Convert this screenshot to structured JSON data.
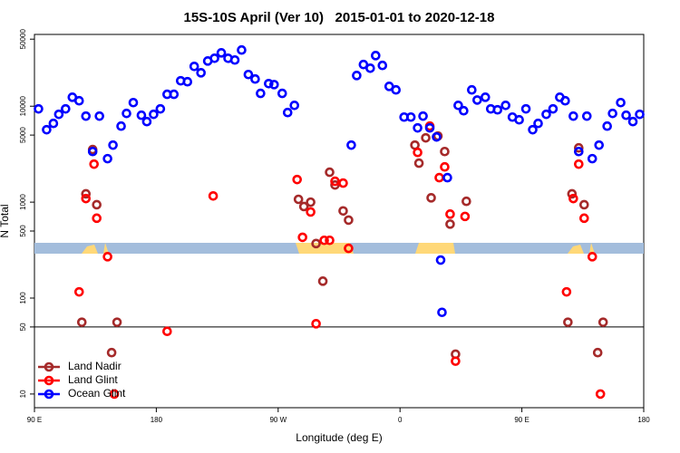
{
  "chart_data": {
    "type": "scatter",
    "title": "15S-10S April (Ver 10)   2015-01-01 to 2020-12-18",
    "x_label": "Longitude (deg E)",
    "y_label": "N Total",
    "log_y": true,
    "legend": "bottom-left",
    "reference_line": 50,
    "xlim": [
      90,
      540
    ],
    "ylim": [
      7.2,
      56000
    ],
    "xticks": [
      {
        "value": 90,
        "label": "90 E"
      },
      {
        "value": 180,
        "label": "180"
      },
      {
        "value": 270,
        "label": "90 W"
      },
      {
        "value": 360,
        "label": "0"
      },
      {
        "value": 450,
        "label": "90 E"
      },
      {
        "value": 540,
        "label": "180"
      }
    ],
    "yticks": [
      10,
      50,
      100,
      500,
      1000,
      5000,
      10000,
      50000
    ],
    "series": [
      {
        "name": "Land Nadir",
        "color": "#a52a2a",
        "x": [
          133,
          128,
          136,
          147,
          151,
          285,
          289,
          294,
          298,
          303,
          308,
          312,
          318,
          322,
          371,
          374,
          379,
          383,
          388,
          393,
          397,
          409,
          401,
          492,
          487,
          496,
          506,
          510,
          125,
          484
        ],
        "values": [
          3530,
          1220,
          940,
          27,
          56,
          1070,
          900,
          1000,
          370,
          150,
          2050,
          1510,
          810,
          650,
          3930,
          2550,
          4680,
          1110,
          4890,
          3370,
          590,
          1020,
          26,
          3680,
          1220,
          940,
          27,
          56,
          56,
          56
        ]
      },
      {
        "name": "Land Glint",
        "color": "#ff0000",
        "x": [
          134,
          128,
          136,
          144,
          123,
          149,
          188,
          222,
          284,
          288,
          294,
          298,
          304,
          308,
          312,
          318,
          322,
          373,
          382,
          389,
          393,
          397,
          408,
          401,
          492,
          488,
          496,
          502,
          483,
          508
        ],
        "values": [
          2490,
          1090,
          680,
          270,
          116,
          10,
          45,
          1160,
          1720,
          430,
          790,
          54,
          400,
          400,
          1650,
          1580,
          330,
          3300,
          6200,
          1800,
          2330,
          750,
          710,
          22,
          2490,
          1090,
          680,
          270,
          116,
          10
        ]
      },
      {
        "name": "Ocean Glint",
        "color": "#0000ff",
        "x": [
          93,
          99,
          104,
          108,
          113,
          118,
          123,
          128,
          133,
          138,
          144,
          148,
          154,
          158,
          163,
          169,
          173,
          178,
          183,
          188,
          193,
          198,
          203,
          208,
          213,
          218,
          223,
          228,
          233,
          238,
          243,
          248,
          253,
          257,
          263,
          267,
          273,
          277,
          282,
          324,
          328,
          333,
          338,
          342,
          347,
          352,
          357,
          363,
          368,
          373,
          377,
          382,
          387,
          395,
          403,
          407,
          413,
          417,
          423,
          427,
          432,
          438,
          443,
          448,
          453,
          458,
          462,
          468,
          473,
          478,
          482,
          488,
          492,
          498,
          502,
          507,
          513,
          517,
          523,
          527,
          532,
          537,
          390,
          391
        ],
        "values": [
          9380,
          5690,
          6620,
          8230,
          9380,
          12400,
          11400,
          7880,
          3370,
          7880,
          2840,
          3930,
          6200,
          8410,
          10900,
          8050,
          6910,
          8230,
          9380,
          13300,
          13300,
          18400,
          18000,
          26000,
          22300,
          29600,
          31600,
          36000,
          31600,
          30300,
          38500,
          21400,
          19200,
          13600,
          17200,
          16800,
          13600,
          8590,
          10200,
          3930,
          20900,
          27200,
          24900,
          33700,
          26600,
          16100,
          14800,
          7700,
          7700,
          5940,
          7880,
          5940,
          4780,
          1800,
          10200,
          8970,
          14800,
          11600,
          12400,
          9380,
          9170,
          10200,
          7700,
          7220,
          9380,
          5690,
          6620,
          8230,
          9380,
          12400,
          11400,
          7880,
          3370,
          7880,
          2840,
          3930,
          6200,
          8410,
          10900,
          8050,
          6910,
          8230,
          249,
          71
        ]
      }
    ]
  }
}
